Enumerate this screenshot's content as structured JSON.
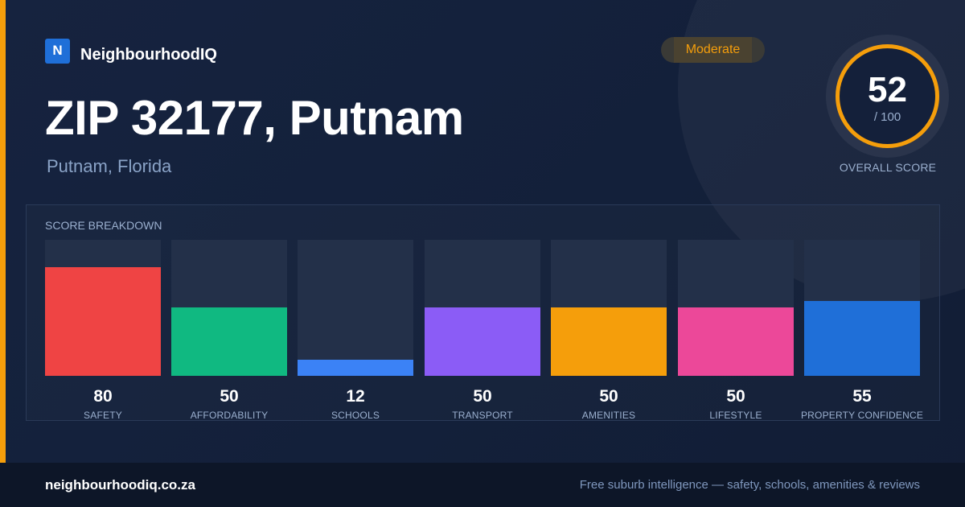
{
  "brand": {
    "logo_letter": "N",
    "name": "NeighbourhoodIQ"
  },
  "header": {
    "title": "ZIP 32177, Putnam",
    "subtitle": "Putnam, Florida"
  },
  "badge": {
    "label": "Moderate",
    "color": "#f59e0b"
  },
  "overall_score": {
    "value": "52",
    "max": "/ 100",
    "label": "OVERALL SCORE",
    "color": "#f59e0b"
  },
  "breakdown": {
    "title": "SCORE BREAKDOWN",
    "scale_max": 100,
    "items": [
      {
        "label": "SAFETY",
        "value": "80",
        "score": 80,
        "color": "#ef4444"
      },
      {
        "label": "AFFORDABILITY",
        "value": "50",
        "score": 50,
        "color": "#10b981"
      },
      {
        "label": "SCHOOLS",
        "value": "12",
        "score": 12,
        "color": "#3b82f6"
      },
      {
        "label": "TRANSPORT",
        "value": "50",
        "score": 50,
        "color": "#8b5cf6"
      },
      {
        "label": "AMENITIES",
        "value": "50",
        "score": 50,
        "color": "#f59e0b"
      },
      {
        "label": "LIFESTYLE",
        "value": "50",
        "score": 50,
        "color": "#ec4899"
      },
      {
        "label": "PROPERTY CONFIDENCE",
        "value": "55",
        "score": 55,
        "color": "#1f6fd8"
      }
    ]
  },
  "footer": {
    "domain": "neighbourhoodiq.co.za",
    "tagline": "Free suburb intelligence — safety, schools, amenities & reviews"
  }
}
